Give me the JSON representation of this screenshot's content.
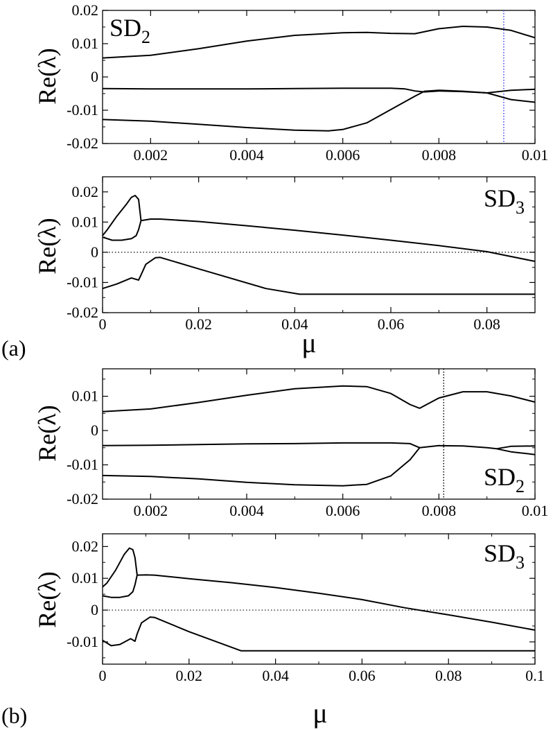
{
  "panels": {
    "a": {
      "label": "(a)",
      "x_label": "μ",
      "top": {
        "label_main": "SD",
        "label_sub": "2",
        "ylabel": "Re(λ)",
        "xlim": [
          0.001,
          0.01
        ],
        "ylim": [
          -0.02,
          0.02
        ],
        "xticks": [
          0.002,
          0.004,
          0.006,
          0.008,
          0.01
        ],
        "xtick_labels": [
          "0.002",
          "0.004",
          "0.006",
          "0.008",
          "0.01"
        ],
        "yticks": [
          -0.02,
          -0.01,
          0,
          0.01,
          0.02
        ],
        "ytick_labels": [
          "-0.02",
          "-0.01",
          "0",
          "0.01",
          "0.02"
        ],
        "vline": {
          "x": 0.00935,
          "color": "#3a3aff",
          "style": "dotted"
        },
        "zero_line": false
      },
      "bottom": {
        "label_main": "SD",
        "label_sub": "3",
        "ylabel": "Re(λ)",
        "xlim": [
          0,
          0.09
        ],
        "ylim": [
          -0.02,
          0.025
        ],
        "xticks": [
          0,
          0.02,
          0.04,
          0.06,
          0.08
        ],
        "xtick_labels": [
          "0",
          "0.02",
          "0.04",
          "0.06",
          "0.08"
        ],
        "yticks": [
          -0.02,
          -0.01,
          0,
          0.01,
          0.02
        ],
        "ytick_labels": [
          "-0.02",
          "-0.01",
          "0",
          "0.01",
          "0.02"
        ],
        "zero_line": true
      }
    },
    "b": {
      "label": "(b)",
      "x_label": "μ",
      "top": {
        "label_main": "SD",
        "label_sub": "2",
        "ylabel": "Re(λ)",
        "xlim": [
          0.001,
          0.01
        ],
        "ylim": [
          -0.02,
          0.018
        ],
        "xticks": [
          0.002,
          0.004,
          0.006,
          0.008,
          0.01
        ],
        "xtick_labels": [
          "0.002",
          "0.004",
          "0.006",
          "0.008",
          "0.01"
        ],
        "yticks": [
          -0.02,
          -0.01,
          0,
          0.01
        ],
        "ytick_labels": [
          "-0.02",
          "-0.01",
          "0",
          "0.01"
        ],
        "vline": {
          "x": 0.0081,
          "color": "#000000",
          "style": "dotted"
        },
        "zero_line": false
      },
      "bottom": {
        "label_main": "SD",
        "label_sub": "3",
        "ylabel": "Re(λ)",
        "xlim": [
          0,
          0.1
        ],
        "ylim": [
          -0.017,
          0.024
        ],
        "xticks": [
          0,
          0.02,
          0.04,
          0.06,
          0.08,
          0.1
        ],
        "xtick_labels": [
          "0",
          "0.02",
          "0.04",
          "0.06",
          "0.08",
          "0.1"
        ],
        "yticks": [
          -0.01,
          0,
          0.01,
          0.02
        ],
        "ytick_labels": [
          "-0.01",
          "0",
          "0.01",
          "0.02"
        ],
        "zero_line": true
      }
    }
  },
  "chart_data": [
    {
      "type": "line",
      "panel": "a-top",
      "xlim": [
        0.001,
        0.01
      ],
      "ylim": [
        -0.02,
        0.02
      ],
      "grid": false,
      "series": [
        {
          "x": [
            0.001,
            0.002,
            0.003,
            0.004,
            0.005,
            0.006,
            0.0065,
            0.007,
            0.0075,
            0.008,
            0.0085,
            0.009,
            0.0095,
            0.01
          ],
          "y": [
            0.0057,
            0.0065,
            0.0085,
            0.0108,
            0.0125,
            0.0133,
            0.0134,
            0.0131,
            0.013,
            0.0145,
            0.0152,
            0.015,
            0.014,
            0.0118
          ]
        },
        {
          "x": [
            0.001,
            0.002,
            0.003,
            0.004,
            0.005,
            0.006,
            0.007,
            0.0073,
            0.0075,
            0.0077,
            0.008,
            0.0085,
            0.009
          ],
          "y": [
            -0.0035,
            -0.0036,
            -0.0036,
            -0.0036,
            -0.0035,
            -0.0034,
            -0.0034,
            -0.0036,
            -0.0042,
            -0.0045,
            -0.0042,
            -0.0044,
            -0.0048
          ]
        },
        {
          "x": [
            0.009,
            0.0095,
            0.01
          ],
          "y": [
            -0.0048,
            -0.004,
            -0.0037
          ]
        },
        {
          "x": [
            0.009,
            0.0095,
            0.01
          ],
          "y": [
            -0.0048,
            -0.0068,
            -0.0076
          ]
        },
        {
          "x": [
            0.001,
            0.002,
            0.003,
            0.004,
            0.005,
            0.0057,
            0.006,
            0.0065,
            0.007,
            0.0075,
            0.0077,
            0.008,
            0.0085,
            0.009
          ],
          "y": [
            -0.0128,
            -0.0133,
            -0.0142,
            -0.0152,
            -0.016,
            -0.0162,
            -0.0158,
            -0.0138,
            -0.0098,
            -0.0058,
            -0.0043,
            -0.004,
            -0.0043,
            -0.0048
          ]
        }
      ]
    },
    {
      "type": "line",
      "panel": "a-bottom",
      "xlim": [
        0,
        0.09
      ],
      "ylim": [
        -0.02,
        0.025
      ],
      "grid": false,
      "series": [
        {
          "x": [
            0,
            0.001,
            0.003,
            0.005,
            0.006,
            0.0068,
            0.0075,
            0.008
          ],
          "y": [
            0.0055,
            0.0075,
            0.012,
            0.016,
            0.0182,
            0.0188,
            0.0175,
            0.0105
          ]
        },
        {
          "x": [
            0,
            0.002,
            0.004,
            0.006,
            0.007,
            0.0075,
            0.008
          ],
          "y": [
            0.005,
            0.004,
            0.004,
            0.0045,
            0.0055,
            0.0075,
            0.0105
          ]
        },
        {
          "x": [
            0.008,
            0.01,
            0.012,
            0.02,
            0.03,
            0.04,
            0.05,
            0.06,
            0.07,
            0.08,
            0.09
          ],
          "y": [
            0.0105,
            0.011,
            0.011,
            0.0102,
            0.0088,
            0.0073,
            0.0057,
            0.004,
            0.0022,
            0.0002,
            -0.003
          ]
        },
        {
          "x": [
            0,
            0.003,
            0.006,
            0.0075,
            0.008,
            0.009,
            0.011,
            0.012,
            0.02,
            0.034,
            0.041,
            0.05,
            0.06,
            0.07,
            0.08,
            0.09
          ],
          "y": [
            -0.012,
            -0.0105,
            -0.0085,
            -0.0092,
            -0.0075,
            -0.004,
            -0.0018,
            -0.0017,
            -0.0055,
            -0.012,
            -0.0139,
            -0.0139,
            -0.0139,
            -0.0139,
            -0.0139,
            -0.0139
          ]
        }
      ]
    },
    {
      "type": "line",
      "panel": "b-top",
      "xlim": [
        0.001,
        0.01
      ],
      "ylim": [
        -0.02,
        0.018
      ],
      "grid": false,
      "series": [
        {
          "x": [
            0.001,
            0.002,
            0.003,
            0.004,
            0.005,
            0.006,
            0.0065,
            0.007,
            0.0074,
            0.0076,
            0.008,
            0.0085,
            0.009,
            0.0095,
            0.01
          ],
          "y": [
            0.0055,
            0.0063,
            0.0082,
            0.0103,
            0.0122,
            0.013,
            0.0128,
            0.0108,
            0.0076,
            0.0065,
            0.0095,
            0.0113,
            0.0113,
            0.0101,
            0.0083
          ]
        },
        {
          "x": [
            0.001,
            0.002,
            0.003,
            0.004,
            0.005,
            0.006,
            0.007,
            0.0074,
            0.0076,
            0.0078,
            0.008,
            0.0085,
            0.009,
            0.0092
          ],
          "y": [
            -0.0044,
            -0.0043,
            -0.0041,
            -0.0039,
            -0.0038,
            -0.0036,
            -0.0036,
            -0.0038,
            -0.005,
            -0.0047,
            -0.0044,
            -0.0045,
            -0.005,
            -0.0053
          ]
        },
        {
          "x": [
            0.0092,
            0.0095,
            0.01
          ],
          "y": [
            -0.0053,
            -0.0046,
            -0.0045
          ]
        },
        {
          "x": [
            0.0092,
            0.0095,
            0.01
          ],
          "y": [
            -0.0053,
            -0.0062,
            -0.007
          ]
        },
        {
          "x": [
            0.001,
            0.002,
            0.003,
            0.004,
            0.005,
            0.006,
            0.0065,
            0.007,
            0.0074,
            0.0076
          ],
          "y": [
            -0.0131,
            -0.0134,
            -0.0141,
            -0.0151,
            -0.0158,
            -0.0161,
            -0.0157,
            -0.0132,
            -0.0085,
            -0.005
          ]
        }
      ]
    },
    {
      "type": "line",
      "panel": "b-bottom",
      "xlim": [
        0,
        0.1
      ],
      "ylim": [
        -0.017,
        0.024
      ],
      "grid": false,
      "series": [
        {
          "x": [
            0,
            0.001,
            0.003,
            0.005,
            0.0062,
            0.007,
            0.0075,
            0.008
          ],
          "y": [
            0.0073,
            0.0085,
            0.0125,
            0.0175,
            0.0195,
            0.019,
            0.0165,
            0.011
          ]
        },
        {
          "x": [
            0,
            0.002,
            0.004,
            0.006,
            0.007,
            0.0075,
            0.008
          ],
          "y": [
            0.0045,
            0.004,
            0.004,
            0.0045,
            0.0058,
            0.008,
            0.011
          ]
        },
        {
          "x": [
            0.008,
            0.01,
            0.012,
            0.02,
            0.03,
            0.04,
            0.05,
            0.06,
            0.07,
            0.08,
            0.09,
            0.1
          ],
          "y": [
            0.011,
            0.0111,
            0.011,
            0.0099,
            0.0086,
            0.0071,
            0.0053,
            0.0033,
            0.0007,
            -0.0015,
            -0.0038,
            -0.0063
          ]
        },
        {
          "x": [
            0,
            0.002,
            0.004,
            0.0065,
            0.0075,
            0.008,
            0.009,
            0.011,
            0.012,
            0.02,
            0.032,
            0.04,
            0.05,
            0.06,
            0.07,
            0.08,
            0.09,
            0.1
          ],
          "y": [
            -0.0095,
            -0.0112,
            -0.0108,
            -0.009,
            -0.0098,
            -0.0075,
            -0.004,
            -0.0022,
            -0.0023,
            -0.0068,
            -0.0128,
            -0.0128,
            -0.0128,
            -0.0128,
            -0.0128,
            -0.0128,
            -0.0128,
            -0.0128
          ]
        }
      ]
    }
  ]
}
